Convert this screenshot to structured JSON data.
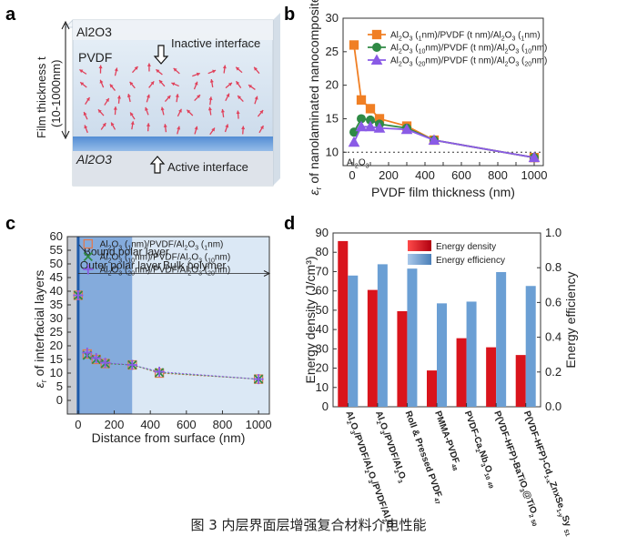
{
  "caption": "图 3  内层界面层增强复合材料介电性能",
  "panel_a": {
    "letter": "a",
    "top_layer": "Al2O3",
    "middle_layer": "PVDF",
    "bottom_layer": "Al2O3",
    "thickness_label": "Film thickness t",
    "thickness_range": "(10-1000nm)",
    "inactive": "Inactive interface",
    "active": "Active interface"
  },
  "chart_data": [
    {
      "panel": "b",
      "type": "line",
      "xlabel": "PVDF film thickness (nm)",
      "ylabel": "εr of nanolaminated nanocomposite",
      "xlim": [
        -50,
        1050
      ],
      "ylim": [
        8,
        30
      ],
      "xticks": [
        0,
        100,
        200,
        300,
        400,
        500,
        600,
        700,
        800,
        900,
        1000
      ],
      "yticks": [
        10,
        15,
        20,
        25,
        30
      ],
      "baseline": {
        "y": 10,
        "label": "Al2O3"
      },
      "legend_position": "top-right",
      "series": [
        {
          "name": "Al2O3 (1nm)/PVDF (t nm)/Al2O3 (1nm)",
          "color": "#f07f24",
          "marker": "square",
          "x": [
            10,
            50,
            100,
            150,
            300,
            450,
            1000
          ],
          "y": [
            26,
            17.8,
            16.5,
            15,
            13.9,
            11.8,
            9.2
          ]
        },
        {
          "name": "Al2O3 (10nm)/PVDF (t nm)/Al2O3 (10nm)",
          "color": "#2f8a45",
          "marker": "circle",
          "x": [
            10,
            50,
            100,
            150,
            300,
            450,
            1000
          ],
          "y": [
            13,
            15,
            14.8,
            14.2,
            13.6,
            11.8,
            9.2
          ]
        },
        {
          "name": "Al2O3 (20nm)/PVDF (t nm)/Al2O3 (20nm)",
          "color": "#8a5be6",
          "marker": "triangle",
          "x": [
            10,
            50,
            100,
            150,
            300,
            450,
            1000
          ],
          "y": [
            11.5,
            13.8,
            13.8,
            13.6,
            13.4,
            11.8,
            9.2
          ]
        }
      ]
    },
    {
      "panel": "c",
      "type": "scatter",
      "xlabel": "Distance from surface  (nm)",
      "ylabel": "εr of interfacial layers",
      "xlim": [
        -60,
        1060
      ],
      "ylim": [
        -5,
        60
      ],
      "xticks": [
        0,
        200,
        400,
        600,
        800,
        1000
      ],
      "yticks": [
        0,
        5,
        10,
        15,
        20,
        25,
        30,
        35,
        40,
        45,
        50,
        55,
        60
      ],
      "legend_position": "top-left",
      "regions": [
        {
          "label": "Bound polar layer",
          "x0": -60,
          "x1": 0
        },
        {
          "label": "Outer polar layer",
          "x0": 0,
          "x1": 300
        },
        {
          "label": "Bulk polymer",
          "x0": 300,
          "x1": 1060
        }
      ],
      "series": [
        {
          "name": "Al2O3 (1nm)/PVDF/Al2O3 (1nm)",
          "color": "#e07a50",
          "marker": "square",
          "x": [
            0,
            50,
            100,
            150,
            300,
            450,
            1000
          ],
          "y": [
            38.5,
            17,
            15,
            13.5,
            13,
            10,
            7.8
          ]
        },
        {
          "name": "Al2O3 (10nm)/PVDF/Al2O3 (10nm)",
          "color": "#2f8a45",
          "marker": "x",
          "x": [
            0,
            50,
            100,
            150,
            300,
            450,
            1000
          ],
          "y": [
            38.5,
            16.5,
            15,
            13.5,
            13,
            10.2,
            7.8
          ]
        },
        {
          "name": "Al2O3 (20nm)/PVDF/Al2O3 (20nm)",
          "color": "#8a5be6",
          "marker": "plus",
          "x": [
            0,
            50,
            100,
            150,
            300,
            450,
            1000
          ],
          "y": [
            38.5,
            17.5,
            15.5,
            13.8,
            13,
            10.5,
            7.8
          ]
        }
      ]
    },
    {
      "panel": "d",
      "type": "bar",
      "ylabel": "Energy density (J/cm³)",
      "y2label": "Energy efficiency",
      "ylim": [
        0,
        90
      ],
      "y2lim": [
        0,
        1.0
      ],
      "yticks": [
        0,
        10,
        20,
        30,
        40,
        50,
        60,
        70,
        80,
        90
      ],
      "y2ticks": [
        0.0,
        0.2,
        0.4,
        0.6,
        0.8,
        1.0
      ],
      "legend_position": "top-right",
      "categories": [
        "Al2O3/PVDF/Al2O3/PVDF/Al2O3",
        "Al2O3/PVDF/Al2O3",
        "Roll & Pressed PVDF47",
        "PMMA-PVDF48",
        "PVDF-Ca2Nb3O10 49",
        "P(VDF-HFP)-BaTiO3@TiO2 50",
        "P(VDF-HFP)-Cd1-xZnxSe1-ySy 51"
      ],
      "series": [
        {
          "name": "Energy density",
          "color": "#d9141c",
          "axis": "left",
          "values": [
            85.8,
            60.5,
            49.5,
            18.8,
            35.5,
            30.8,
            26.8
          ]
        },
        {
          "name": "Energy efficiency",
          "color": "#6b9fd4",
          "axis": "right",
          "values": [
            0.755,
            0.82,
            0.795,
            0.595,
            0.605,
            0.775,
            0.695
          ]
        }
      ]
    }
  ]
}
